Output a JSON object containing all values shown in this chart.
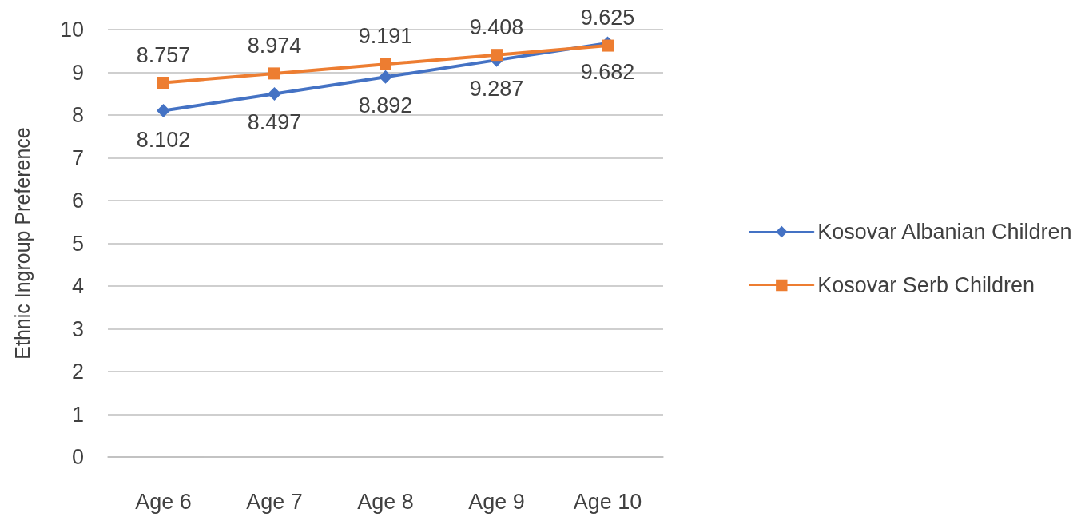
{
  "chart_data": {
    "type": "line",
    "ylabel": "Ethnic Ingroup Preference",
    "categories": [
      "Age 6",
      "Age 7",
      "Age 8",
      "Age 9",
      "Age 10"
    ],
    "series": [
      {
        "name": "Kosovar Albanian Children",
        "color": "#4472c4",
        "marker": "diamond",
        "values": [
          8.102,
          8.497,
          8.892,
          9.287,
          9.682
        ]
      },
      {
        "name": "Kosovar Serb Children",
        "color": "#ed7d31",
        "marker": "square",
        "values": [
          8.757,
          8.974,
          9.191,
          9.408,
          9.625
        ]
      }
    ],
    "ylim": [
      0,
      10
    ],
    "yticks": [
      0,
      1,
      2,
      3,
      4,
      5,
      6,
      7,
      8,
      9,
      10
    ],
    "grid": "y",
    "legend": "right",
    "data_labels": true
  }
}
